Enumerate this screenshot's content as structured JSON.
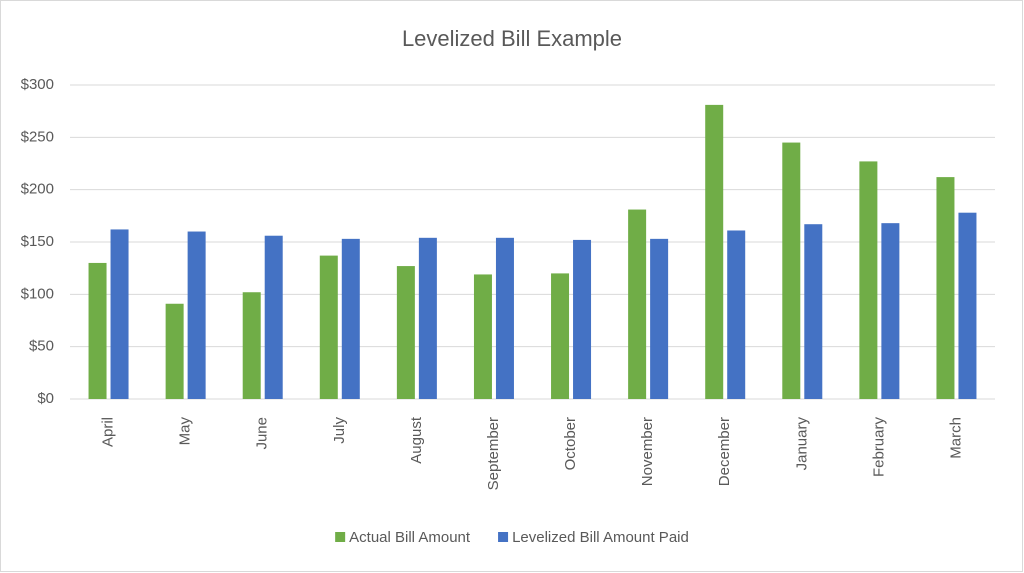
{
  "chart_data": {
    "type": "bar",
    "title": "Levelized Bill Example",
    "categories": [
      "April",
      "May",
      "June",
      "July",
      "August",
      "September",
      "October",
      "November",
      "December",
      "January",
      "February",
      "March"
    ],
    "series": [
      {
        "name": "Actual Bill Amount",
        "color": "#70ad47",
        "values": [
          130,
          91,
          102,
          137,
          127,
          119,
          120,
          181,
          281,
          245,
          227,
          212
        ]
      },
      {
        "name": "Levelized Bill Amount Paid",
        "color": "#4472c4",
        "values": [
          162,
          160,
          156,
          153,
          154,
          154,
          152,
          153,
          161,
          167,
          168,
          178
        ]
      }
    ],
    "ylim": [
      0,
      300
    ],
    "yticks": [
      {
        "value": 0,
        "label": "$0"
      },
      {
        "value": 50,
        "label": "$50"
      },
      {
        "value": 100,
        "label": "$100"
      },
      {
        "value": 150,
        "label": "$150"
      },
      {
        "value": 200,
        "label": "$200"
      },
      {
        "value": 250,
        "label": "$250"
      },
      {
        "value": 300,
        "label": "$300"
      }
    ],
    "grid": true,
    "legend": "bottom"
  }
}
